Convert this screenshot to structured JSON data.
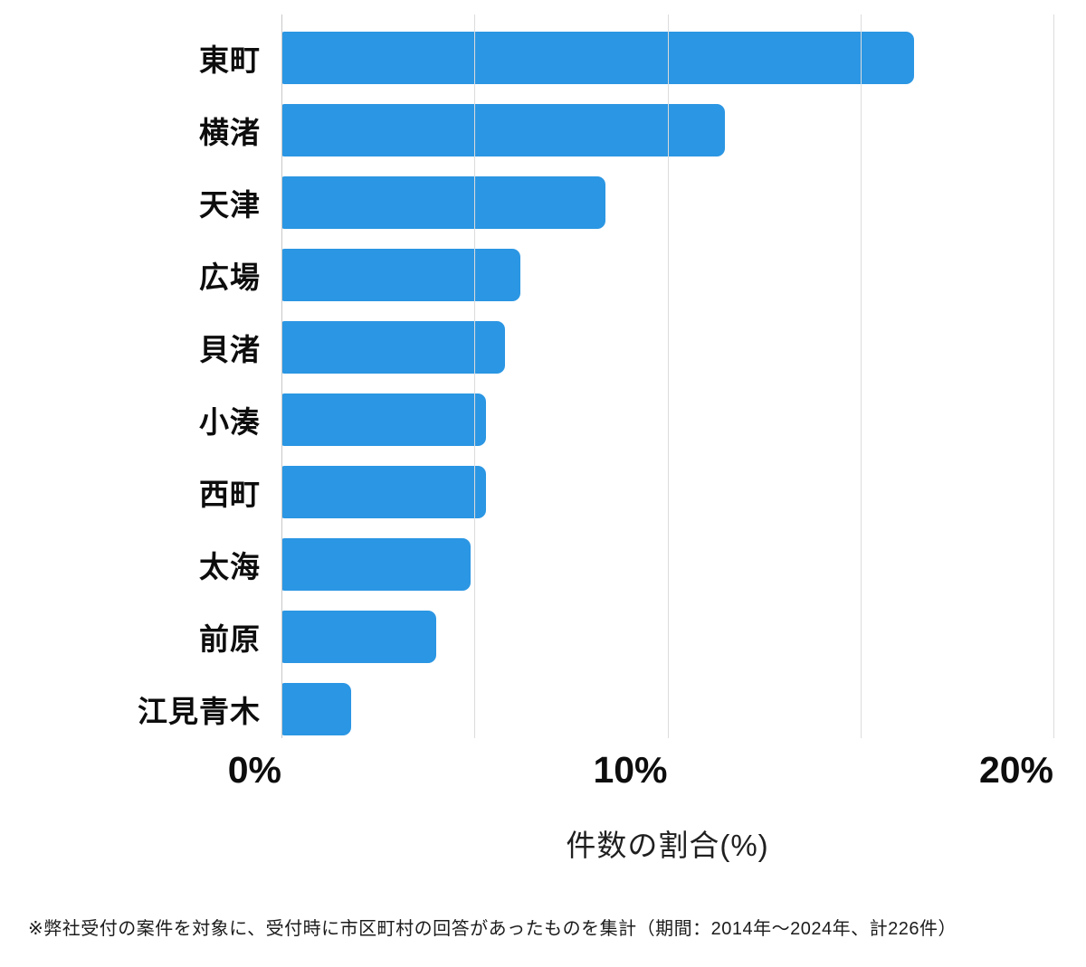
{
  "chart_data": {
    "type": "bar",
    "orientation": "horizontal",
    "categories": [
      "東町",
      "横渚",
      "天津",
      "広場",
      "貝渚",
      "小湊",
      "西町",
      "太海",
      "前原",
      "江見青木"
    ],
    "values": [
      16.4,
      11.5,
      8.4,
      6.2,
      5.8,
      5.3,
      5.3,
      4.9,
      4.0,
      1.8
    ],
    "title": "",
    "xlabel": "件数の割合(%)",
    "ylabel": "",
    "xlim": [
      0,
      20
    ],
    "xticks": [
      {
        "value": 0,
        "label": "0%"
      },
      {
        "value": 10,
        "label": "10%"
      },
      {
        "value": 20,
        "label": "20%"
      }
    ],
    "gridline_interval": 5,
    "grid": "vertical",
    "legend": "none",
    "bar_color": "#2b96e3",
    "gridline_color": "#dcdcdc",
    "axis_line_color": "#c9c9c9",
    "text_color": "#0d0d0d"
  },
  "footnote": "※弊社受付の案件を対象に、受付時に市区町村の回答があったものを集計（期間：2014年～2024年、計226件）"
}
